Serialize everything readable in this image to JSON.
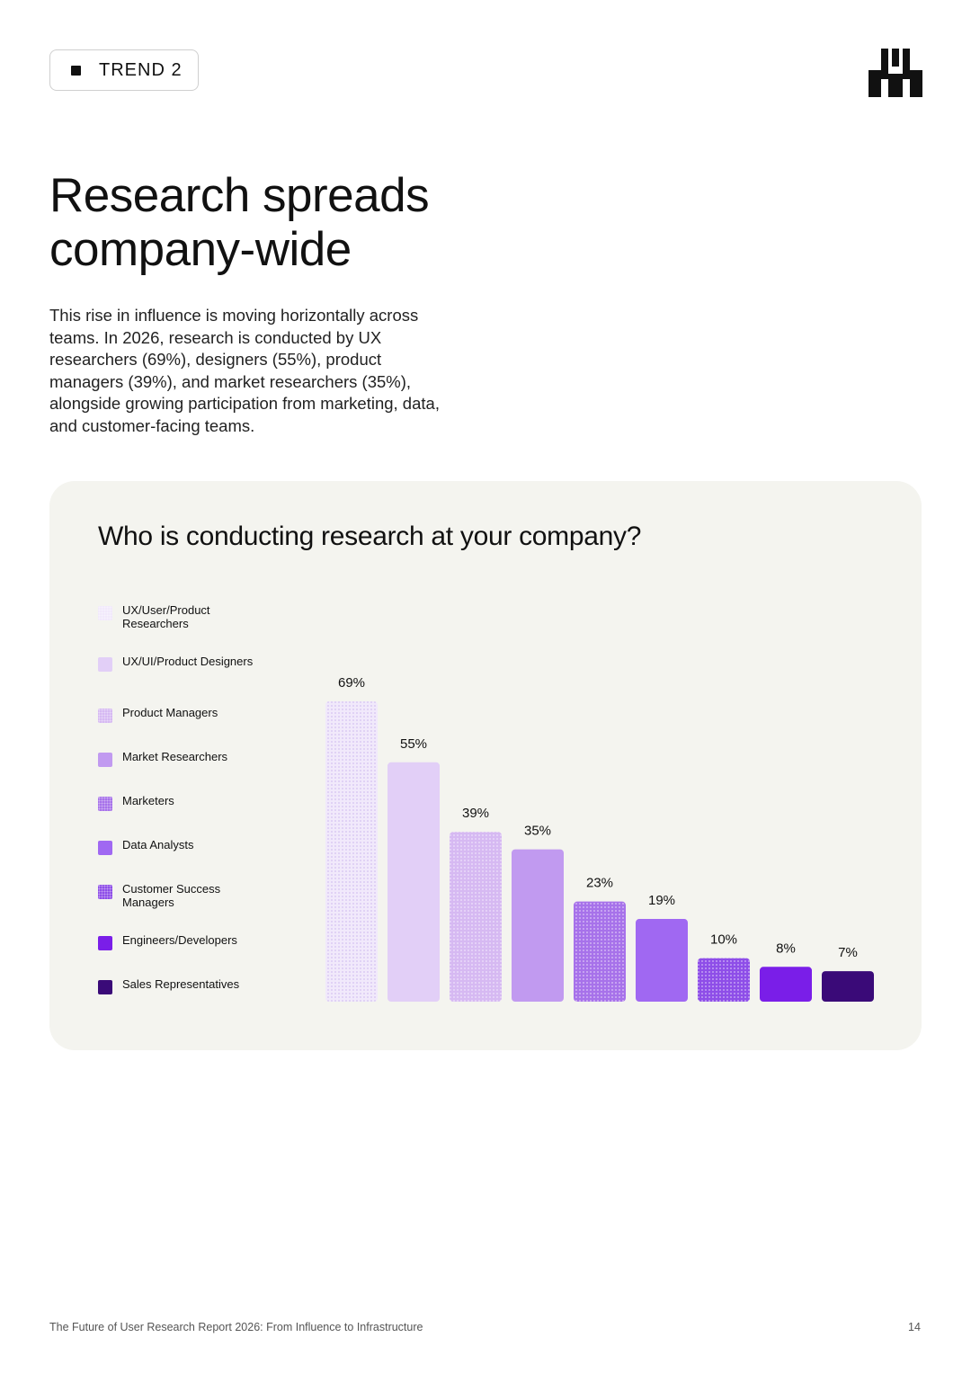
{
  "header": {
    "trend_label": "TREND 2"
  },
  "title": "Research spreads company-wide",
  "body": "This rise in influence is moving horizontally across teams. In 2026, research is conducted by UX researchers (69%), designers (55%), product managers (39%), and market researchers (35%), alongside growing participation from marketing, data, and customer-facing teams.",
  "chart_data": {
    "type": "bar",
    "title": "Who is conducting research at your company?",
    "categories": [
      "UX/User/Product Researchers",
      "UX/UI/Product Designers",
      "Product Managers",
      "Market Researchers",
      "Marketers",
      "Data Analysts",
      "Customer Success Managers",
      "Engineers/Developers",
      "Sales Representatives"
    ],
    "values": [
      69,
      55,
      39,
      35,
      23,
      19,
      10,
      8,
      7
    ],
    "value_labels": [
      "69%",
      "55%",
      "39%",
      "35%",
      "23%",
      "19%",
      "10%",
      "8%",
      "7%"
    ],
    "colors": [
      "#f1e9fb",
      "#e2cff7",
      "#d6b9f2",
      "#c19af0",
      "#a772ea",
      "#a068f2",
      "#8e4ee8",
      "#7a1ee8",
      "#3a0a78"
    ],
    "patterned": [
      true,
      false,
      true,
      false,
      true,
      false,
      true,
      false,
      false
    ],
    "ylim": [
      0,
      69
    ],
    "legend_position": "left",
    "grid": false
  },
  "footer": {
    "report_title": "The Future of User Research Report 2026: From Influence to Infrastructure",
    "page_number": "14"
  }
}
